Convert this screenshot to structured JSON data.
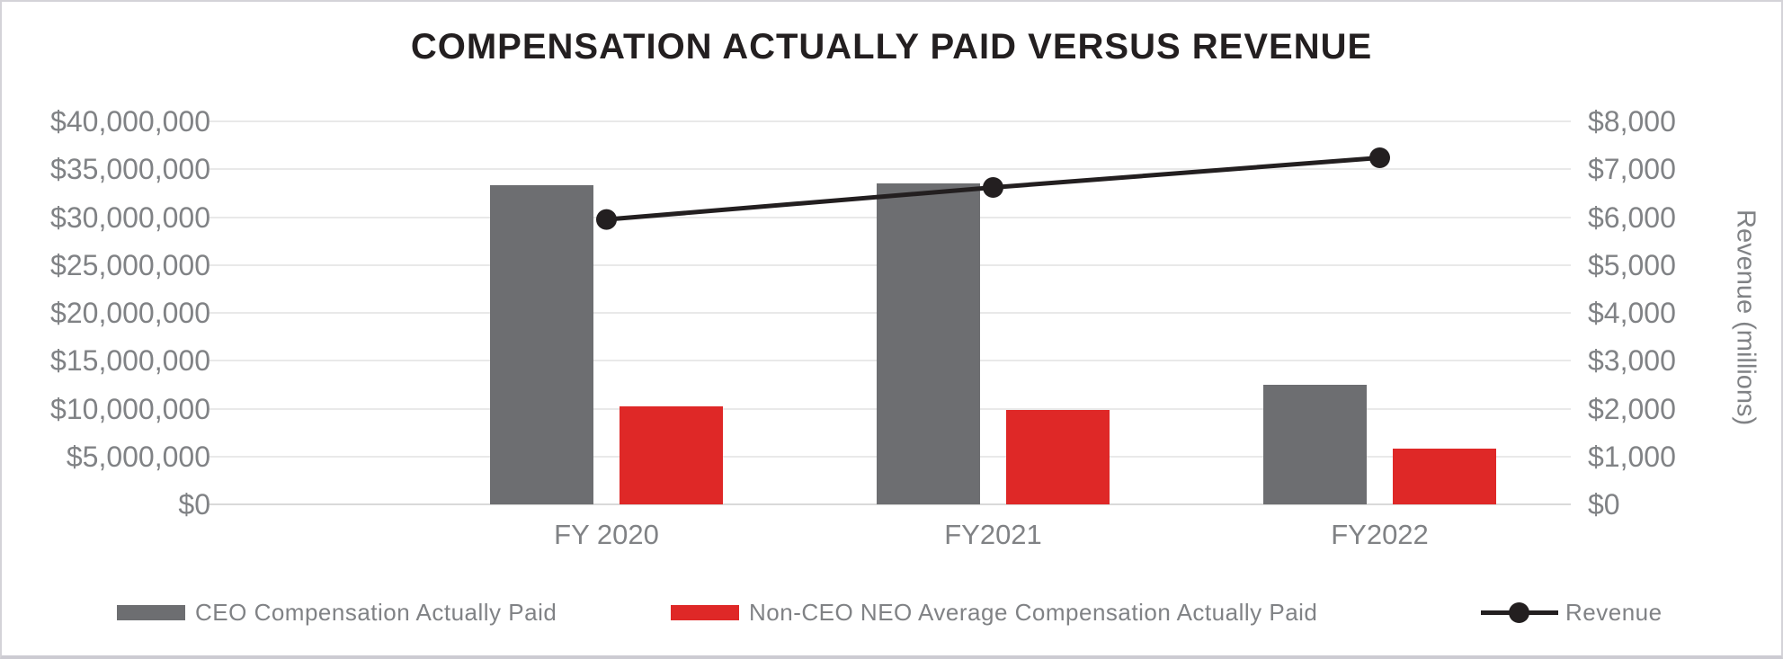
{
  "title": "COMPENSATION ACTUALLY PAID VERSUS REVENUE",
  "colors": {
    "ceo_bar": "#6d6e71",
    "neo_bar": "#df2827",
    "revenue_line": "#231f20",
    "axis_text": "#808285",
    "gridline": "#e9e9e9",
    "title_text": "#231f20"
  },
  "chart_data": {
    "type": "combo-bar-line",
    "categories": [
      "FY 2020",
      "FY2021",
      "FY2022"
    ],
    "series": [
      {
        "name": "CEO Compensation Actually Paid",
        "type": "bar",
        "axis": "left",
        "color": "#6d6e71",
        "values": [
          33300000,
          33500000,
          12500000
        ]
      },
      {
        "name": "Non-CEO NEO Average Compensation Actually Paid",
        "type": "bar",
        "axis": "left",
        "color": "#df2827",
        "values": [
          10200000,
          9900000,
          5800000
        ]
      },
      {
        "name": "Revenue",
        "type": "line",
        "axis": "right",
        "color": "#231f20",
        "values": [
          5950,
          6620,
          7240
        ]
      }
    ],
    "left_axis": {
      "min": 0,
      "max": 40000000,
      "step": 5000000,
      "tick_labels_top_to_bottom": [
        "$40,000,000",
        "$35,000,000",
        "$30,000,000",
        "$25,000,000",
        "$20,000,000",
        "$15,000,000",
        "$10,000,000",
        "$5,000,000",
        "$0"
      ]
    },
    "right_axis": {
      "min": 0,
      "max": 8000,
      "step": 1000,
      "title": "Revenue (millions)",
      "tick_labels_top_to_bottom": [
        "$8,000",
        "$7,000",
        "$6,000",
        "$5,000",
        "$4,000",
        "$3,000",
        "$2,000",
        "$1,000",
        "$0"
      ]
    },
    "grid": true,
    "legend_position": "bottom"
  },
  "legend": {
    "items": [
      {
        "label": "CEO Compensation Actually Paid",
        "marker": "gray-square"
      },
      {
        "label": "Non-CEO NEO Average Compensation Actually Paid",
        "marker": "red-square"
      },
      {
        "label": "Revenue",
        "marker": "black-line-dot"
      }
    ]
  }
}
